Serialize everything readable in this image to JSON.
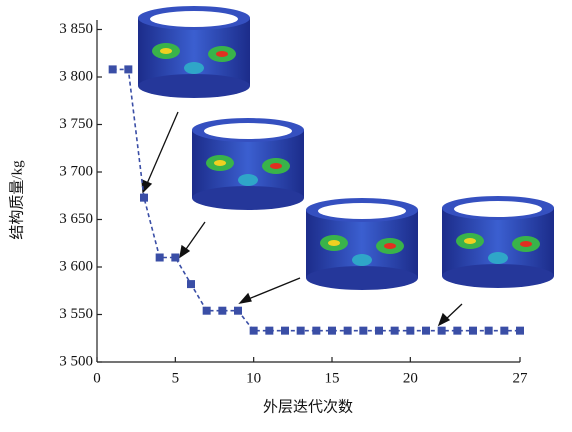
{
  "chart_data": {
    "type": "line",
    "x_label": "外层迭代次数",
    "y_label": "结构质量/kg",
    "x": [
      1,
      2,
      3,
      4,
      5,
      6,
      7,
      8,
      9,
      10,
      11,
      12,
      13,
      14,
      15,
      16,
      17,
      18,
      19,
      20,
      21,
      22,
      23,
      24,
      25,
      26,
      27
    ],
    "series": [
      {
        "color": "#3a4ea6",
        "values": [
          3808,
          3808,
          3673,
          3610,
          3610,
          3582,
          3554,
          3554,
          3554,
          3533,
          3533,
          3533,
          3533,
          3533,
          3533,
          3533,
          3533,
          3533,
          3533,
          3533,
          3533,
          3533,
          3533,
          3533,
          3533,
          3533,
          3533
        ]
      }
    ],
    "xlim": [
      0,
      27
    ],
    "xticks": [
      0,
      5,
      10,
      15,
      20,
      27
    ],
    "ylim": [
      3500,
      3860
    ],
    "yticks": [
      {
        "value": 3500,
        "label": "3 500"
      },
      {
        "value": 3550,
        "label": "3 550"
      },
      {
        "value": 3600,
        "label": "3 600"
      },
      {
        "value": 3650,
        "label": "3 650"
      },
      {
        "value": 3700,
        "label": "3 700"
      },
      {
        "value": 3750,
        "label": "3 750"
      },
      {
        "value": 3800,
        "label": "3 800"
      },
      {
        "value": 3850,
        "label": "3 850"
      }
    ]
  }
}
